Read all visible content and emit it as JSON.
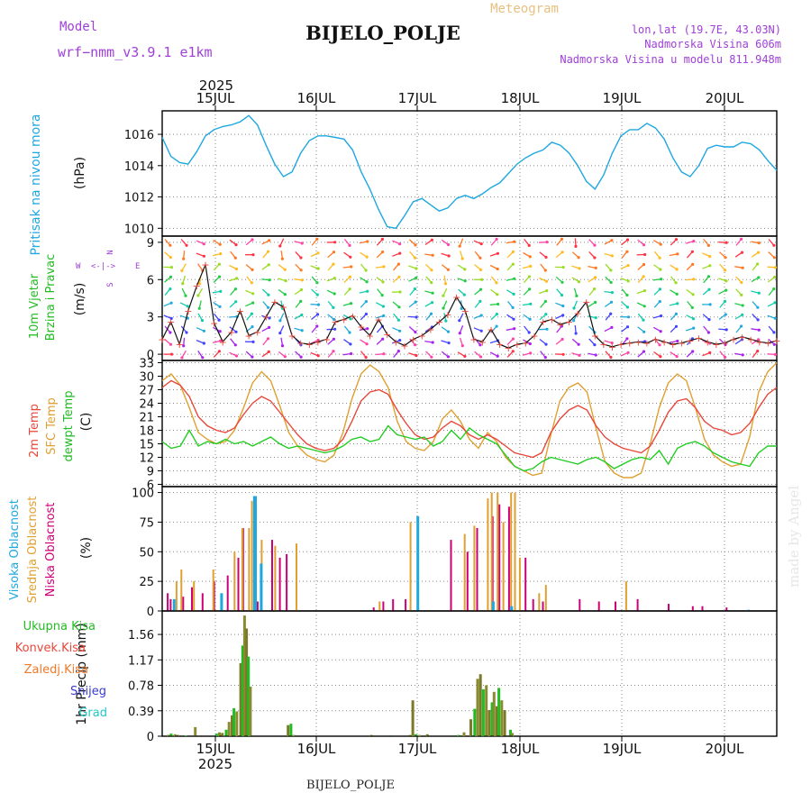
{
  "header": {
    "model_label": "Model",
    "model_name": "wrf−nmm_v3.9.1  e1km",
    "title": "BIJELO_POLJE",
    "meteogram": "Meteogram",
    "lonlat": "lon,lat (19.7E, 43.03N)",
    "altitude": "Nadmorska Visina 606m",
    "model_altitude": "Nadmorska Visina u modelu 811.948m",
    "footer": "BIJELO_POLJE",
    "watermark": "made by Angel"
  },
  "time_axis": {
    "days": [
      "15JUL",
      "16JUL",
      "17JUL",
      "18JUL",
      "19JUL",
      "20JUL"
    ],
    "year": "2025"
  },
  "colors": {
    "pressure": "#1fa7e0",
    "t2m": "#e8473a",
    "tsfc": "#e0a030",
    "dewpt": "#22cc22",
    "cloud_high": "#1fa7e0",
    "cloud_mid": "#e0a030",
    "cloud_low": "#cc0077",
    "precip_total": "#22bb22",
    "precip_conv": "#e8473a",
    "precip_frz": "#f07a2a",
    "precip_snow": "#3a3ad0",
    "precip_grad": "#22c8c8",
    "wind_label": "#22bb22",
    "grid": "#888888"
  },
  "chart_data": [
    {
      "type": "line",
      "ylabel_title": "Pritisak na nivou mora",
      "ylabel_unit": "(hPa)",
      "ylim": [
        1009.5,
        1017.5
      ],
      "yticks": [
        "1010",
        "1012",
        "1014",
        "1016"
      ],
      "series": [
        {
          "values": [
            1015.8,
            1014.6,
            1014.2,
            1014.1,
            1014.9,
            1015.9,
            1016.3,
            1016.5,
            1016.6,
            1016.8,
            1017.2,
            1016.6,
            1015.3,
            1014.1,
            1013.3,
            1013.6,
            1014.8,
            1015.6,
            1015.9,
            1015.9,
            1015.8,
            1015.7,
            1015.0,
            1013.6,
            1012.5,
            1011.2,
            1010.1,
            1010.0,
            1010.8,
            1011.7,
            1011.9,
            1011.5,
            1011.1,
            1011.3,
            1011.9,
            1012.1,
            1011.9,
            1012.2,
            1012.6,
            1012.9,
            1013.5,
            1014.1,
            1014.5,
            1014.8,
            1015.0,
            1015.5,
            1015.3,
            1014.8,
            1014.0,
            1013.0,
            1012.5,
            1013.4,
            1014.8,
            1015.9,
            1016.3,
            1016.3,
            1016.7,
            1016.4,
            1015.7,
            1014.5,
            1013.6,
            1013.3,
            1014.0,
            1015.1,
            1015.3,
            1015.2,
            1015.2,
            1015.5,
            1015.4,
            1015.0,
            1014.3,
            1013.7
          ]
        }
      ]
    },
    {
      "type": "line",
      "ylabel_title": "10m Vjetar",
      "ylabel_title2": "Brzina i Pravac",
      "ylabel_unit": "(m/s)",
      "compass": "N\n^\nW <-|-> E\nv\nS",
      "ylim": [
        -0.5,
        9.5
      ],
      "yticks": [
        "0",
        "3",
        "6",
        "9"
      ],
      "series": [
        {
          "values": [
            1.2,
            2.6,
            0.8,
            3.5,
            5.5,
            7.2,
            2.5,
            1.0,
            1.8,
            3.5,
            1.5,
            1.8,
            3.0,
            4.2,
            3.8,
            1.5,
            0.9,
            0.8,
            1.0,
            1.2,
            2.6,
            2.8,
            3.1,
            2.2,
            1.5,
            2.8,
            1.6,
            1.0,
            0.7,
            1.2,
            1.5,
            2.0,
            2.6,
            3.2,
            4.6,
            3.5,
            1.2,
            1.0,
            2.0,
            0.8,
            0.5,
            0.8,
            0.9,
            1.5,
            2.6,
            2.8,
            2.4,
            2.6,
            3.3,
            4.2,
            1.5,
            0.8,
            0.6,
            0.8,
            0.9,
            1.0,
            0.9,
            1.2,
            1.0,
            0.8,
            0.9,
            1.1,
            1.3,
            1.0,
            0.8,
            0.9,
            1.2,
            1.4,
            1.2,
            1.0,
            0.9,
            1.1
          ]
        }
      ],
      "rows_ms": [
        0,
        1,
        2,
        3,
        4,
        5,
        6,
        7,
        8,
        9
      ]
    },
    {
      "type": "line",
      "ylabel_title": "2m Temp",
      "ylabel_title2": "SFC Temp",
      "ylabel_title3": "dewpt Temp",
      "ylabel_unit": "(C)",
      "ylim": [
        5.5,
        33.5
      ],
      "yticks": [
        "6",
        "9",
        "12",
        "15",
        "18",
        "21",
        "24",
        "27",
        "30",
        "33"
      ],
      "series": [
        {
          "name": "2m Temp",
          "values": [
            27.5,
            29.0,
            28.0,
            25.5,
            21.0,
            19.0,
            18.0,
            17.5,
            18.5,
            21.5,
            24.0,
            25.5,
            24.5,
            22.0,
            19.5,
            17.0,
            15.0,
            14.0,
            13.5,
            14.0,
            16.0,
            20.0,
            24.5,
            26.5,
            27.0,
            26.0,
            22.5,
            19.5,
            17.0,
            16.0,
            16.5,
            18.5,
            20.0,
            19.0,
            17.0,
            16.0,
            17.0,
            16.0,
            14.5,
            13.0,
            12.5,
            12.0,
            13.0,
            17.5,
            20.5,
            22.5,
            23.5,
            22.5,
            19.0,
            16.5,
            15.0,
            14.0,
            13.5,
            13.0,
            14.5,
            18.0,
            22.0,
            24.5,
            25.0,
            23.0,
            20.0,
            18.5,
            18.0,
            17.0,
            17.5,
            19.5,
            23.0,
            26.0,
            27.5
          ]
        },
        {
          "name": "SFC Temp",
          "values": [
            29.0,
            30.5,
            28.0,
            23.0,
            17.5,
            16.0,
            15.0,
            15.5,
            18.0,
            23.0,
            28.5,
            31.0,
            29.0,
            23.5,
            17.5,
            14.5,
            12.5,
            11.5,
            11.0,
            12.5,
            17.5,
            25.0,
            30.5,
            32.5,
            31.0,
            27.5,
            20.0,
            15.5,
            14.0,
            13.5,
            15.5,
            20.5,
            22.5,
            20.0,
            16.0,
            14.0,
            17.5,
            15.5,
            12.0,
            10.0,
            9.0,
            8.0,
            8.5,
            17.0,
            24.5,
            27.5,
            28.5,
            26.5,
            18.5,
            11.0,
            8.5,
            7.5,
            7.5,
            8.5,
            15.0,
            23.0,
            28.5,
            30.5,
            29.0,
            23.0,
            16.0,
            12.5,
            11.0,
            10.0,
            10.5,
            16.5,
            26.5,
            31.0,
            33.0
          ]
        },
        {
          "name": "dewpt Temp",
          "values": [
            15.5,
            14.0,
            14.5,
            18.0,
            14.5,
            15.5,
            15.0,
            16.0,
            15.0,
            15.5,
            14.5,
            15.5,
            16.5,
            15.0,
            14.0,
            14.5,
            14.0,
            13.5,
            13.0,
            13.5,
            14.5,
            16.0,
            16.5,
            15.5,
            16.0,
            19.0,
            17.0,
            16.5,
            16.0,
            16.5,
            14.5,
            15.5,
            18.0,
            16.0,
            18.5,
            17.0,
            16.0,
            15.0,
            12.5,
            10.0,
            9.0,
            9.5,
            11.0,
            12.0,
            11.5,
            11.0,
            10.5,
            11.5,
            12.0,
            11.0,
            9.5,
            10.5,
            11.5,
            12.0,
            11.5,
            13.5,
            10.5,
            14.0,
            15.0,
            15.5,
            14.5,
            13.0,
            12.0,
            11.0,
            10.5,
            10.0,
            13.0,
            14.5,
            14.5
          ]
        }
      ]
    },
    {
      "type": "bar",
      "ylabel_title": "Visoka Oblacnost",
      "ylabel_title2": "Srednja Oblacnost",
      "ylabel_title3": "Niska Oblacnost",
      "ylabel_unit": "(%)",
      "ylim": [
        0,
        105
      ],
      "yticks": [
        "0",
        "25",
        "50",
        "75",
        "100"
      ],
      "series": [
        {
          "name": "Niska Oblacnost",
          "values": [
            [
              2,
              15
            ],
            [
              5,
              10
            ],
            [
              18,
              12
            ],
            [
              27,
              20
            ],
            [
              38,
              15
            ],
            [
              50,
              25
            ],
            [
              64,
              30
            ],
            [
              75,
              45
            ],
            [
              80,
              70
            ],
            [
              95,
              8
            ],
            [
              110,
              60
            ],
            [
              118,
              45
            ],
            [
              125,
              48
            ],
            [
              215,
              3
            ],
            [
              225,
              8
            ],
            [
              235,
              10
            ],
            [
              248,
              10
            ],
            [
              295,
              60
            ],
            [
              312,
              50
            ],
            [
              322,
              70
            ],
            [
              338,
              80
            ],
            [
              345,
              90
            ],
            [
              355,
              88
            ],
            [
              372,
              45
            ],
            [
              380,
              10
            ],
            [
              390,
              8
            ],
            [
              428,
              10
            ],
            [
              448,
              8
            ],
            [
              465,
              8
            ],
            [
              488,
              10
            ],
            [
              520,
              6
            ],
            [
              545,
              4
            ],
            [
              555,
              4
            ],
            [
              580,
              3
            ]
          ]
        },
        {
          "name": "Srednja Oblacnost",
          "values": [
            [
              10,
              25
            ],
            [
              15,
              35
            ],
            [
              28,
              25
            ],
            [
              48,
              35
            ],
            [
              70,
              50
            ],
            [
              78,
              70
            ],
            [
              85,
              70
            ],
            [
              88,
              93
            ],
            [
              98,
              60
            ],
            [
              112,
              55
            ],
            [
              134,
              57
            ],
            [
              220,
              8
            ],
            [
              252,
              75
            ],
            [
              308,
              65
            ],
            [
              318,
              72
            ],
            [
              332,
              95
            ],
            [
              336,
              100
            ],
            [
              342,
              100
            ],
            [
              348,
              75
            ],
            [
              356,
              100
            ],
            [
              360,
              100
            ],
            [
              365,
              45
            ],
            [
              385,
              15
            ],
            [
              392,
              22
            ],
            [
              475,
              25
            ]
          ]
        },
        {
          "name": "Visoka Oblacnost",
          "values": [
            [
              6,
              10
            ],
            [
              55,
              15
            ],
            [
              89,
              97
            ],
            [
              90,
              97
            ],
            [
              96,
              40
            ],
            [
              258,
              80
            ],
            [
              336,
              8
            ],
            [
              355,
              4
            ],
            [
              600,
              1
            ]
          ]
        }
      ]
    },
    {
      "type": "bar",
      "ylabel_title": "1hr Precip (mm)",
      "ylim": [
        0,
        1.92
      ],
      "yticks": [
        "0",
        "0.39",
        "0.78",
        "1.17",
        "1.56"
      ],
      "legend": [
        "Ukupna Kisa",
        "Konvek.Kisa",
        "Zaledj.Kisa",
        "Snijeg",
        "Grad"
      ],
      "series": [
        {
          "name": "Ukupna Kisa",
          "values": [
            [
              2,
              0.02
            ],
            [
              5,
              0.04
            ],
            [
              9,
              0.03
            ],
            [
              12,
              0.02
            ],
            [
              20,
              0.01
            ],
            [
              30,
              0.14
            ],
            [
              36,
              0.01
            ],
            [
              52,
              0.04
            ],
            [
              55,
              0.06
            ],
            [
              58,
              0.05
            ],
            [
              62,
              0.1
            ],
            [
              65,
              0.22
            ],
            [
              68,
              0.32
            ],
            [
              70,
              0.43
            ],
            [
              73,
              0.38
            ],
            [
              77,
              1.12
            ],
            [
              79,
              1.39
            ],
            [
              81,
              1.85
            ],
            [
              83,
              1.65
            ],
            [
              85,
              1.22
            ],
            [
              87,
              0.76
            ],
            [
              126,
              0.17
            ],
            [
              129,
              0.19
            ],
            [
              132,
              0.02
            ],
            [
              212,
              0.02
            ],
            [
              232,
              0.01
            ],
            [
              252,
              0.02
            ],
            [
              255,
              0.55
            ],
            [
              258,
              0.03
            ],
            [
              262,
              0.02
            ],
            [
              270,
              0.03
            ],
            [
              302,
              0.02
            ],
            [
              308,
              0.06
            ],
            [
              315,
              0.26
            ],
            [
              319,
              0.42
            ],
            [
              322,
              0.88
            ],
            [
              325,
              0.95
            ],
            [
              328,
              0.72
            ],
            [
              331,
              0.78
            ],
            [
              334,
              0.4
            ],
            [
              337,
              0.52
            ],
            [
              339,
              0.68
            ],
            [
              342,
              0.46
            ],
            [
              344,
              0.74
            ],
            [
              347,
              0.55
            ],
            [
              350,
              0.4
            ],
            [
              356,
              0.1
            ],
            [
              358,
              0.05
            ]
          ]
        }
      ]
    }
  ]
}
